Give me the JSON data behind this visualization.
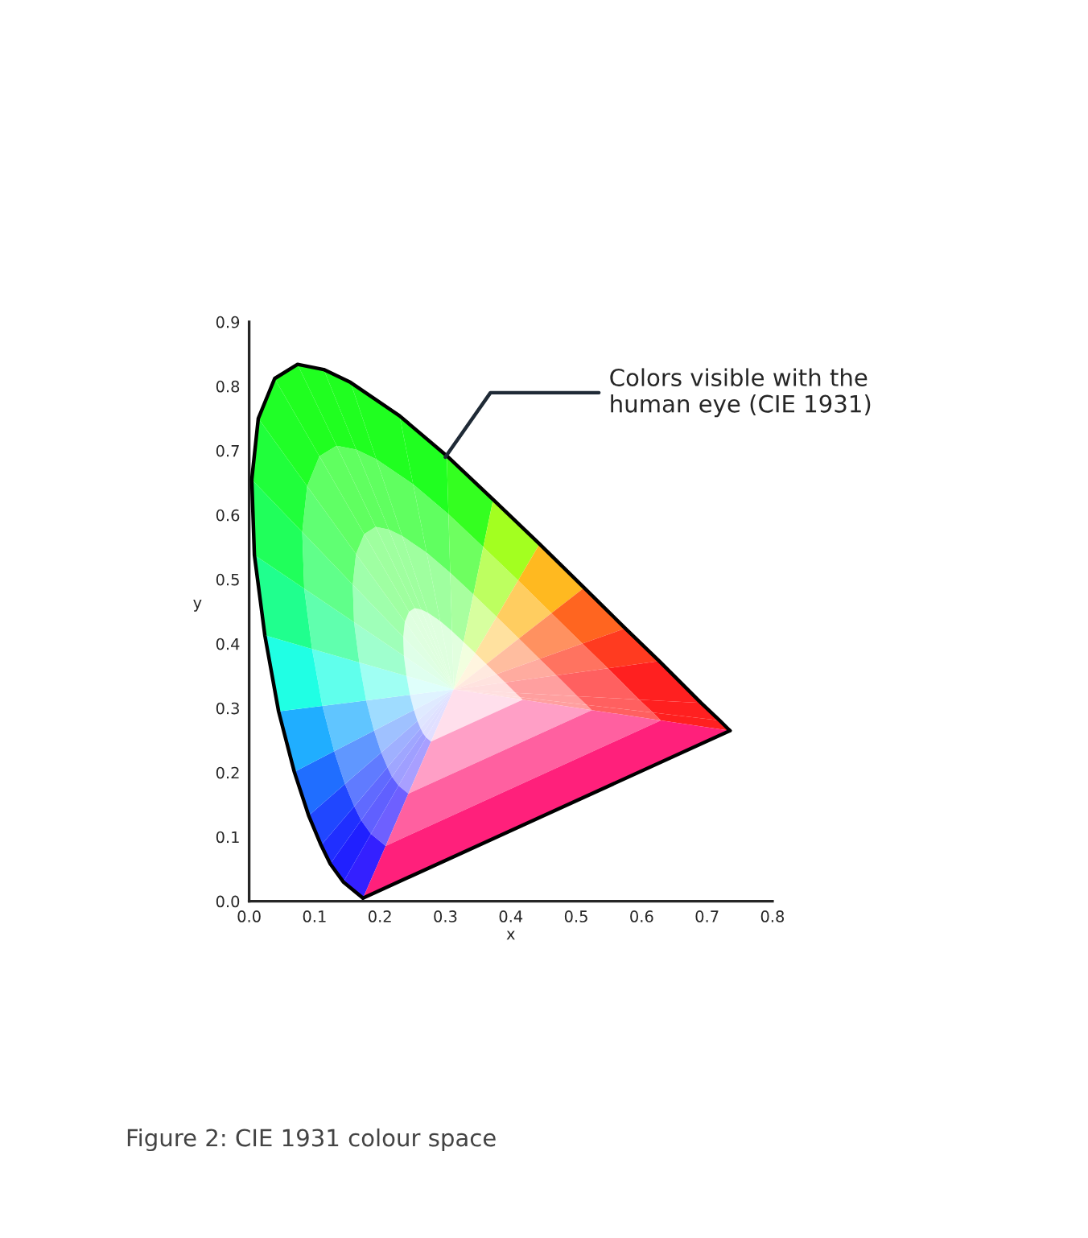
{
  "chart_data": {
    "type": "line",
    "xlabel": "x",
    "ylabel": "y",
    "series": [
      {
        "color": "#000000",
        "x": [
          0.174,
          0.144,
          0.124,
          0.11,
          0.091,
          0.069,
          0.045,
          0.024,
          0.008,
          0.004,
          0.014,
          0.039,
          0.074,
          0.114,
          0.155,
          0.23,
          0.302,
          0.373,
          0.444,
          0.512,
          0.575,
          0.627,
          0.691,
          0.719,
          0.735
        ],
        "values": [
          0.005,
          0.03,
          0.058,
          0.087,
          0.133,
          0.201,
          0.295,
          0.413,
          0.538,
          0.655,
          0.75,
          0.812,
          0.834,
          0.826,
          0.806,
          0.754,
          0.692,
          0.624,
          0.555,
          0.487,
          0.424,
          0.373,
          0.308,
          0.281,
          0.265
        ]
      },
      {
        "color": "#000000",
        "x": [
          0.174,
          0.735
        ],
        "values": [
          0.005,
          0.265
        ]
      }
    ],
    "xlim": [
      0,
      0.8
    ],
    "ylim": [
      0,
      0.9
    ],
    "xticks": [
      {
        "value": 0,
        "label": "0.0"
      },
      0.1,
      0.2,
      0.3,
      0.4,
      0.5,
      0.6,
      0.7,
      0.8
    ],
    "yticks": [
      {
        "value": 0,
        "label": "0.0"
      },
      0.1,
      0.2,
      0.3,
      0.4,
      0.5,
      0.6,
      0.7,
      0.8,
      0.9
    ],
    "grid": false,
    "legend": false,
    "marker": "none",
    "line_style": "solid",
    "annotations": [
      {
        "text": "Colors visible with the\nhuman eye (CIE 1931)",
        "x": 0.3,
        "y": 0.69
      },
      "Figure 2: CIE 1931 colour space"
    ]
  }
}
